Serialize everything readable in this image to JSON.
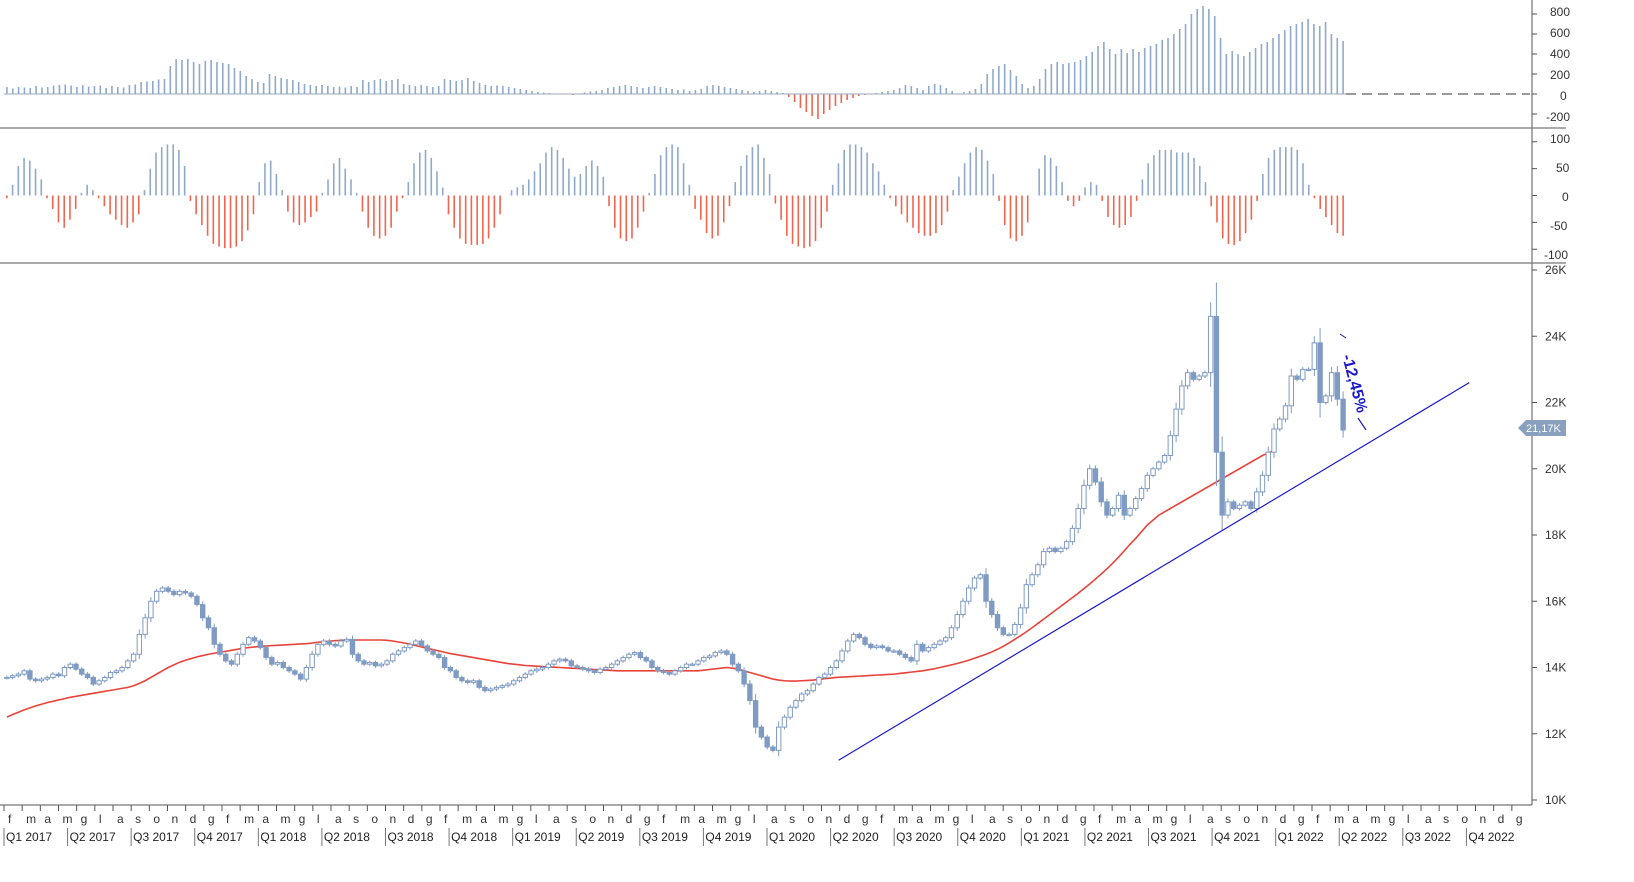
{
  "colors": {
    "up": "#8fa9cc",
    "down": "#f0654f",
    "candle": "#7f9bc3",
    "ma_line": "#e8433a",
    "trendline": "#1a1acc",
    "annotation": "#1a1acc",
    "badge": "#8aa0bf",
    "border": "#666666"
  },
  "chart_data": [
    {
      "type": "bar",
      "panel": "volume-histogram",
      "ylim": [
        -300,
        900
      ],
      "yticks": [
        "800",
        "600",
        "400",
        "200",
        "0",
        "-200"
      ],
      "baseline": 0,
      "values": [
        70,
        55,
        70,
        65,
        60,
        80,
        65,
        70,
        85,
        90,
        95,
        85,
        70,
        90,
        75,
        80,
        85,
        60,
        80,
        70,
        65,
        90,
        95,
        120,
        125,
        130,
        145,
        150,
        280,
        350,
        340,
        350,
        320,
        300,
        330,
        340,
        320,
        310,
        300,
        260,
        230,
        180,
        150,
        120,
        110,
        200,
        180,
        160,
        150,
        140,
        120,
        100,
        90,
        80,
        90,
        80,
        70,
        75,
        65,
        80,
        70,
        140,
        120,
        140,
        150,
        130,
        140,
        150,
        100,
        90,
        80,
        90,
        80,
        70,
        80,
        150,
        140,
        130,
        140,
        160,
        130,
        110,
        90,
        80,
        85,
        80,
        70,
        60,
        50,
        40,
        30,
        20,
        15,
        10,
        5,
        0,
        -5,
        -10,
        5,
        15,
        25,
        30,
        40,
        60,
        70,
        80,
        90,
        80,
        70,
        60,
        70,
        80,
        70,
        60,
        50,
        40,
        45,
        30,
        40,
        50,
        80,
        90,
        80,
        70,
        60,
        50,
        40,
        30,
        20,
        30,
        40,
        30,
        20,
        10,
        -30,
        -80,
        -140,
        -180,
        -220,
        -250,
        -200,
        -160,
        -120,
        -90,
        -60,
        -40,
        -20,
        -10,
        0,
        10,
        20,
        30,
        40,
        60,
        90,
        80,
        60,
        40,
        80,
        100,
        90,
        60,
        30,
        0,
        20,
        30,
        50,
        100,
        200,
        250,
        280,
        300,
        240,
        180,
        100,
        60,
        80,
        150,
        250,
        300,
        320,
        300,
        310,
        320,
        340,
        380,
        420,
        480,
        520,
        450,
        400,
        450,
        410,
        450,
        420,
        460,
        480,
        500,
        540,
        560,
        600,
        650,
        700,
        800,
        850,
        880,
        850,
        780,
        560,
        400,
        430,
        400,
        380,
        420,
        460,
        500,
        520,
        560,
        600,
        640,
        680,
        700,
        720,
        750,
        700,
        680,
        720,
        600,
        560,
        530
      ]
    },
    {
      "type": "bar",
      "panel": "momentum-oscillator",
      "ylim": [
        -120,
        120
      ],
      "yticks": [
        "100",
        "50",
        "0",
        "-50",
        "-100"
      ],
      "baseline": 0,
      "values": [
        -5,
        20,
        55,
        70,
        65,
        50,
        30,
        -5,
        -25,
        -50,
        -60,
        -45,
        -25,
        5,
        20,
        10,
        -5,
        -20,
        -35,
        -45,
        -55,
        -60,
        -50,
        -35,
        10,
        50,
        80,
        90,
        95,
        95,
        85,
        55,
        -10,
        -35,
        -55,
        -75,
        -90,
        -95,
        -98,
        -98,
        -95,
        -85,
        -65,
        -35,
        25,
        60,
        65,
        40,
        10,
        -30,
        -50,
        -55,
        -50,
        -40,
        -30,
        5,
        30,
        60,
        70,
        50,
        30,
        5,
        -30,
        -60,
        -75,
        -80,
        -75,
        -60,
        -30,
        -5,
        25,
        60,
        80,
        85,
        70,
        45,
        15,
        -35,
        -60,
        -80,
        -90,
        -92,
        -92,
        -90,
        -80,
        -60,
        -35,
        0,
        10,
        15,
        20,
        30,
        45,
        60,
        80,
        90,
        85,
        70,
        50,
        35,
        40,
        55,
        65,
        55,
        35,
        -20,
        -60,
        -80,
        -85,
        -80,
        -60,
        -30,
        5,
        40,
        75,
        90,
        95,
        90,
        60,
        20,
        -25,
        -45,
        -70,
        -80,
        -75,
        -50,
        -20,
        25,
        55,
        75,
        90,
        95,
        70,
        40,
        -15,
        -45,
        -75,
        -90,
        -95,
        -98,
        -95,
        -85,
        -60,
        -30,
        20,
        60,
        85,
        95,
        95,
        90,
        80,
        60,
        45,
        20,
        -5,
        -20,
        -35,
        -50,
        -60,
        -70,
        -75,
        -75,
        -70,
        -55,
        -30,
        10,
        35,
        60,
        80,
        90,
        85,
        65,
        40,
        -10,
        -55,
        -80,
        -85,
        -75,
        -50,
        0,
        50,
        75,
        70,
        55,
        25,
        -10,
        -20,
        -10,
        15,
        25,
        20,
        -10,
        -40,
        -55,
        -60,
        -55,
        -40,
        -10,
        30,
        60,
        75,
        85,
        85,
        85,
        80,
        80,
        80,
        70,
        55,
        25,
        -20,
        -50,
        -80,
        -90,
        -92,
        -85,
        -70,
        -45,
        -10,
        40,
        70,
        85,
        90,
        90,
        90,
        85,
        60,
        20,
        -5,
        -25,
        -40,
        -55,
        -70,
        -75
      ]
    },
    {
      "type": "candlestick",
      "panel": "price",
      "ylim": [
        10000,
        26000
      ],
      "yticks": [
        "26K",
        "24K",
        "22K",
        "20K",
        "18K",
        "16K",
        "14K",
        "12K",
        "10K"
      ],
      "last_price_label": "21,17K",
      "annotation": "-12,45%",
      "x_month_labels": [
        "f",
        "m",
        "a",
        "m",
        "g",
        "l",
        "a",
        "s",
        "o",
        "n",
        "d",
        "g",
        "f",
        "m",
        "a",
        "m",
        "g",
        "l",
        "a",
        "s",
        "o",
        "n",
        "d",
        "g",
        "f",
        "m",
        "a",
        "m",
        "g",
        "l",
        "a",
        "s",
        "o",
        "n",
        "d",
        "g",
        "f",
        "m",
        "a",
        "m",
        "g",
        "l",
        "a",
        "s",
        "o",
        "n",
        "d",
        "g",
        "f",
        "m",
        "a",
        "m",
        "g",
        "l",
        "a",
        "s",
        "o",
        "n",
        "d",
        "g",
        "f",
        "m",
        "a",
        "m",
        "g",
        "l",
        "a",
        "s",
        "o",
        "n",
        "d",
        "g",
        "f",
        "m",
        "a",
        "m",
        "g",
        "l",
        "a",
        "s",
        "o",
        "n",
        "d",
        "g"
      ],
      "x_quarter_labels": [
        "Q1 2017",
        "Q2 2017",
        "Q3 2017",
        "Q4 2017",
        "Q1 2018",
        "Q2 2018",
        "Q3 2018",
        "Q4 2018",
        "Q1 2019",
        "Q2 2019",
        "Q3 2019",
        "Q4 2019",
        "Q1 2020",
        "Q2 2020",
        "Q3 2020",
        "Q4 2020",
        "Q1 2021",
        "Q2 2021",
        "Q3 2021",
        "Q4 2021",
        "Q1 2022",
        "Q2 2022",
        "Q3 2022",
        "Q4 2022"
      ],
      "close": [
        13700,
        13750,
        13800,
        13900,
        13650,
        13600,
        13650,
        13700,
        13800,
        13750,
        14000,
        14100,
        13950,
        13800,
        13700,
        13500,
        13600,
        13700,
        13850,
        13900,
        14000,
        14200,
        14400,
        15000,
        15500,
        16000,
        16300,
        16400,
        16300,
        16200,
        16300,
        16250,
        16150,
        15900,
        15500,
        15200,
        14700,
        14400,
        14200,
        14100,
        14400,
        14700,
        14900,
        14800,
        14600,
        14300,
        14100,
        14150,
        14000,
        13900,
        13800,
        13650,
        14000,
        14400,
        14700,
        14800,
        14700,
        14650,
        14800,
        14850,
        14400,
        14200,
        14100,
        14150,
        14050,
        14100,
        14200,
        14400,
        14500,
        14600,
        14700,
        14800,
        14650,
        14500,
        14400,
        14300,
        14000,
        13900,
        13700,
        13600,
        13550,
        13600,
        13400,
        13300,
        13350,
        13400,
        13450,
        13500,
        13600,
        13700,
        13800,
        13900,
        13950,
        14000,
        14100,
        14200,
        14250,
        14200,
        14050,
        14000,
        13950,
        13900,
        13850,
        13950,
        14000,
        14100,
        14200,
        14300,
        14400,
        14450,
        14300,
        14200,
        14000,
        13900,
        13850,
        13800,
        13900,
        14000,
        14100,
        14100,
        14200,
        14300,
        14350,
        14450,
        14500,
        14400,
        14100,
        13900,
        13500,
        13000,
        12200,
        11900,
        11600,
        11500,
        12200,
        12500,
        12800,
        13000,
        13200,
        13300,
        13500,
        13700,
        13800,
        14000,
        14200,
        14500,
        14800,
        15000,
        14900,
        14700,
        14600,
        14650,
        14600,
        14500,
        14500,
        14400,
        14300,
        14200,
        14700,
        14500,
        14600,
        14700,
        14800,
        14900,
        15200,
        15600,
        16000,
        16400,
        16700,
        16800,
        16000,
        15600,
        15200,
        15000,
        15000,
        15300,
        15800,
        16500,
        16800,
        17100,
        17500,
        17600,
        17500,
        17600,
        17800,
        18200,
        18800,
        19500,
        20000,
        19600,
        19000,
        18600,
        18800,
        19200,
        18600,
        18800,
        19100,
        19400,
        19800,
        20000,
        20200,
        20400,
        21000,
        21800,
        22500,
        22900,
        22700,
        22800,
        22900,
        24600,
        20500,
        18600,
        19000,
        18800,
        18900,
        19000,
        18800,
        19300,
        19800,
        20500,
        21200,
        21500,
        21900,
        22800,
        22700,
        23000,
        23000,
        23800,
        22000,
        22200,
        22900,
        22100,
        21170
      ],
      "ma": [
        12500,
        12580,
        12650,
        12720,
        12780,
        12840,
        12890,
        12940,
        12980,
        13020,
        13060,
        13100,
        13130,
        13160,
        13190,
        13220,
        13250,
        13280,
        13310,
        13340,
        13370,
        13400,
        13450,
        13520,
        13600,
        13700,
        13800,
        13900,
        14000,
        14080,
        14160,
        14220,
        14270,
        14320,
        14360,
        14400,
        14430,
        14460,
        14490,
        14520,
        14550,
        14580,
        14600,
        14620,
        14640,
        14650,
        14660,
        14670,
        14680,
        14690,
        14700,
        14710,
        14720,
        14740,
        14760,
        14780,
        14800,
        14810,
        14820,
        14830,
        14830,
        14830,
        14830,
        14830,
        14830,
        14830,
        14820,
        14800,
        14770,
        14740,
        14700,
        14660,
        14620,
        14580,
        14540,
        14500,
        14460,
        14420,
        14390,
        14360,
        14330,
        14300,
        14270,
        14240,
        14210,
        14180,
        14150,
        14120,
        14100,
        14080,
        14060,
        14050,
        14040,
        14030,
        14020,
        14010,
        14000,
        13990,
        13980,
        13970,
        13960,
        13950,
        13940,
        13930,
        13920,
        13910,
        13900,
        13900,
        13900,
        13900,
        13900,
        13900,
        13900,
        13900,
        13900,
        13900,
        13900,
        13900,
        13900,
        13900,
        13900,
        13920,
        13940,
        13960,
        13980,
        14000,
        13980,
        13950,
        13900,
        13850,
        13800,
        13750,
        13700,
        13650,
        13620,
        13600,
        13590,
        13590,
        13600,
        13610,
        13620,
        13640,
        13660,
        13680,
        13700,
        13710,
        13720,
        13730,
        13740,
        13750,
        13760,
        13770,
        13780,
        13790,
        13800,
        13820,
        13840,
        13860,
        13880,
        13900,
        13930,
        13960,
        14000,
        14040,
        14080,
        14120,
        14170,
        14220,
        14280,
        14340,
        14400,
        14470,
        14550,
        14640,
        14740,
        14850,
        14960,
        15080,
        15200,
        15330,
        15460,
        15590,
        15720,
        15850,
        15980,
        16110,
        16240,
        16380,
        16520,
        16670,
        16820,
        16980,
        17150,
        17330,
        17520,
        17720,
        17900,
        18100,
        18300,
        18450,
        18600,
        18700,
        18800,
        18900,
        19000,
        19100,
        19200,
        19300,
        19400,
        19500,
        19600,
        19700,
        19800,
        19900,
        20000,
        20100,
        20200,
        20300,
        20400,
        20480,
        20550
      ],
      "trendline": {
        "from": [
          "Q2 2020",
          11200
        ],
        "to": [
          "Q2 2022",
          22600
        ]
      }
    }
  ]
}
